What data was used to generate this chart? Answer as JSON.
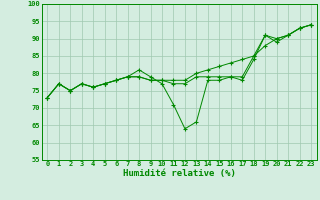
{
  "xlabel": "Humidité relative (%)",
  "background_color": "#d4ede0",
  "grid_color": "#a0c8b0",
  "line_color": "#008800",
  "xlim": [
    -0.5,
    23.5
  ],
  "ylim": [
    55,
    100
  ],
  "yticks": [
    55,
    60,
    65,
    70,
    75,
    80,
    85,
    90,
    95,
    100
  ],
  "xticks": [
    0,
    1,
    2,
    3,
    4,
    5,
    6,
    7,
    8,
    9,
    10,
    11,
    12,
    13,
    14,
    15,
    16,
    17,
    18,
    19,
    20,
    21,
    22,
    23
  ],
  "line1": [
    73,
    77,
    75,
    77,
    76,
    77,
    78,
    79,
    81,
    79,
    77,
    71,
    64,
    66,
    78,
    78,
    79,
    78,
    84,
    91,
    89,
    91,
    93,
    94
  ],
  "line2": [
    73,
    77,
    75,
    77,
    76,
    77,
    78,
    79,
    79,
    78,
    78,
    77,
    77,
    79,
    79,
    79,
    79,
    79,
    85,
    91,
    90,
    91,
    93,
    94
  ],
  "line3": [
    73,
    77,
    75,
    77,
    76,
    77,
    78,
    79,
    79,
    78,
    78,
    78,
    78,
    80,
    81,
    82,
    83,
    84,
    85,
    88,
    90,
    91,
    93,
    94
  ]
}
